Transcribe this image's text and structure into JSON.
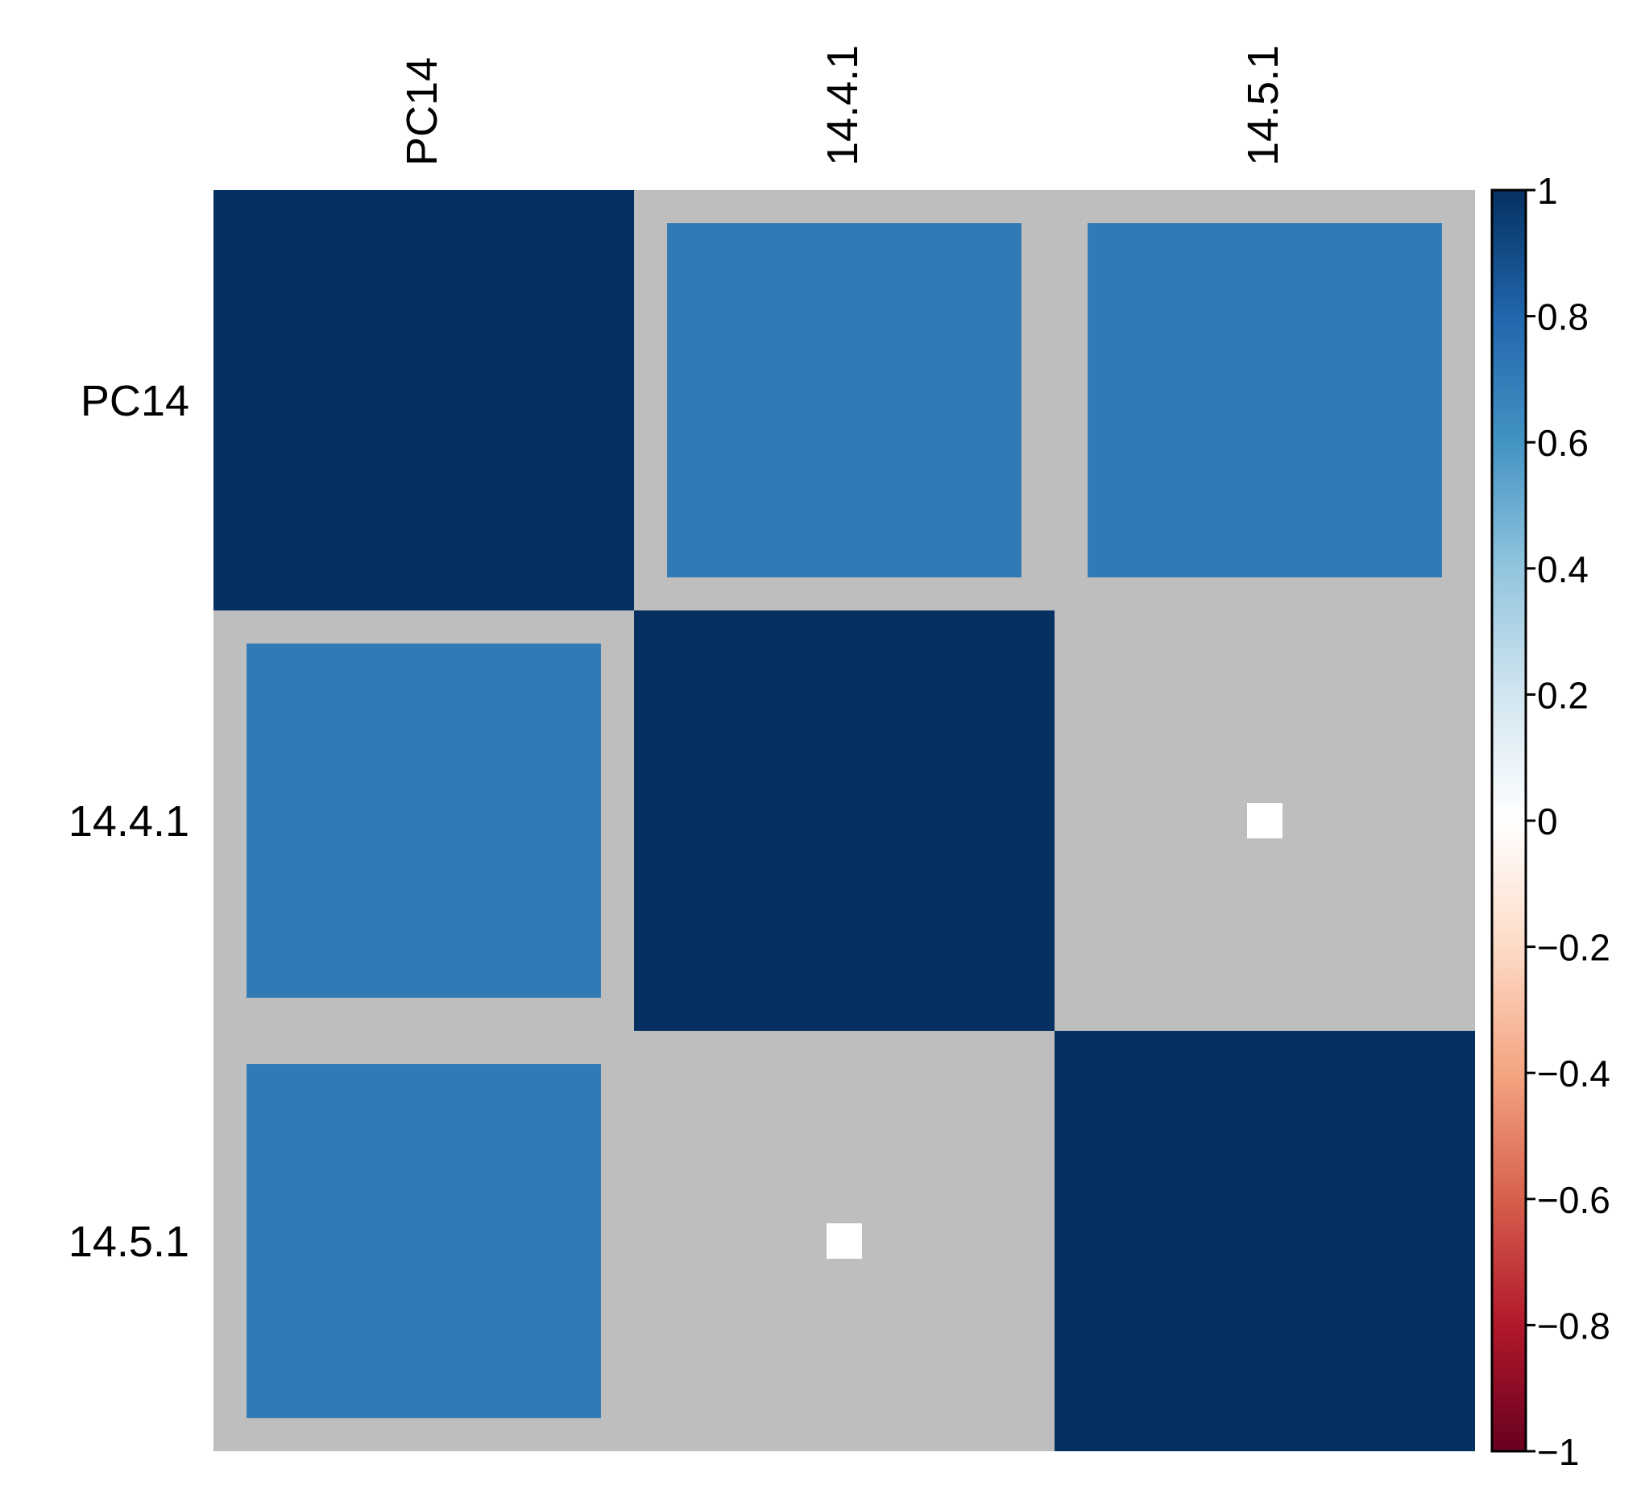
{
  "chart_data": {
    "type": "heatmap",
    "title": "",
    "xlabel": "",
    "ylabel": "",
    "variables": [
      "PC14",
      "14.4.1",
      "14.5.1"
    ],
    "matrix": [
      [
        1.0,
        0.71,
        0.71
      ],
      [
        0.71,
        1.0,
        0.0
      ],
      [
        0.71,
        0.0,
        1.0
      ]
    ],
    "cell_shape": "square-scaled-by-abs-value",
    "background_color": "#BEBEBE",
    "colorbar": {
      "range": [
        -1,
        1
      ],
      "ticks": [
        1,
        0.8,
        0.6,
        0.4,
        0.2,
        0,
        -0.2,
        -0.4,
        -0.6,
        -0.8,
        -1
      ],
      "tick_labels": [
        "1",
        "0.8",
        "0.6",
        "0.4",
        "0.2",
        "0",
        "−0.2",
        "−0.4",
        "−0.6",
        "−0.8",
        "−1"
      ],
      "colors": [
        "#67001F",
        "#B2182B",
        "#D6604D",
        "#F4A582",
        "#FDDBC7",
        "#FFFFFF",
        "#D1E5F0",
        "#92C5DE",
        "#4393C3",
        "#2166AC",
        "#053061"
      ],
      "position": "right"
    }
  }
}
